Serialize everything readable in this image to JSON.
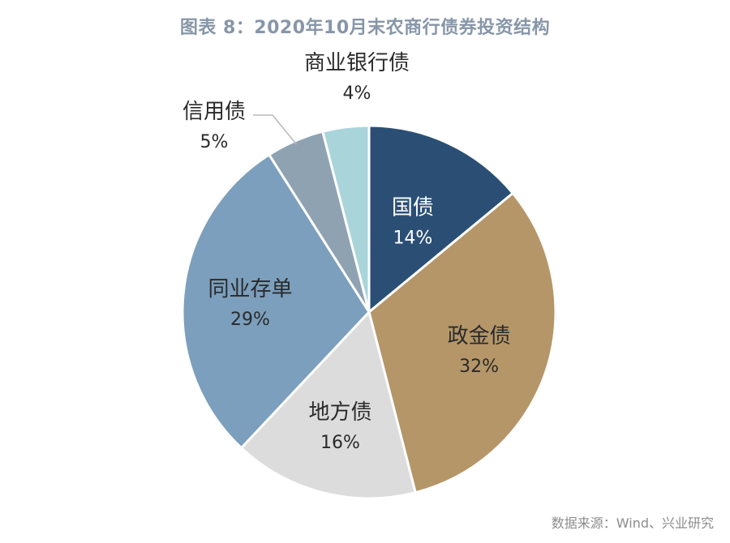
{
  "chart_data": {
    "type": "pie",
    "title": "图表 8：2020年10月末农商行债券投资结构",
    "slices": [
      {
        "label": "国债",
        "value": 14,
        "value_label": "14%",
        "color": "#2b4f74",
        "text_color": "#ffffff"
      },
      {
        "label": "政金债",
        "value": 32,
        "value_label": "32%",
        "color": "#b59668",
        "text_color": "#2a2a2a"
      },
      {
        "label": "地方债",
        "value": 16,
        "value_label": "16%",
        "color": "#dcdcdc",
        "text_color": "#2a2a2a"
      },
      {
        "label": "同业存单",
        "value": 29,
        "value_label": "29%",
        "color": "#7b9fbc",
        "text_color": "#2a2a2a"
      },
      {
        "label": "信用债",
        "value": 5,
        "value_label": "5%",
        "color": "#8fa2b2",
        "text_color": "#2a2a2a"
      },
      {
        "label": "商业银行债",
        "value": 4,
        "value_label": "4%",
        "color": "#a9d5da",
        "text_color": "#2a2a2a"
      }
    ],
    "start_angle_deg": 0,
    "direction": "clockwise"
  },
  "source": "数据来源：Wind、兴业研究"
}
